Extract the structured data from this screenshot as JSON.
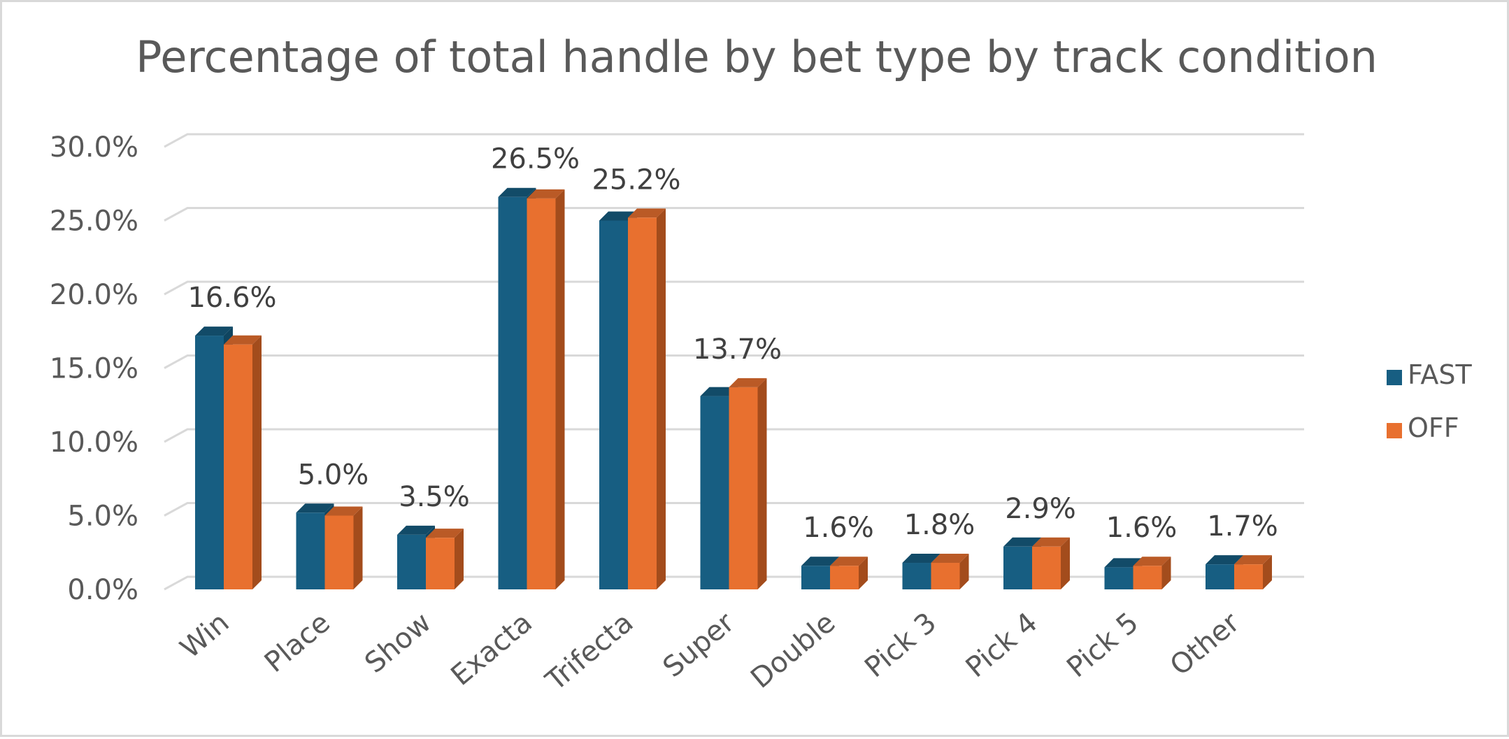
{
  "chart_data": {
    "type": "bar",
    "title": "Percentage of total handle by bet type by track condition",
    "xlabel": "",
    "ylabel": "",
    "categories": [
      "Win",
      "Place",
      "Show",
      "Exacta",
      "Trifecta",
      "Super",
      "Double",
      "Pick 3",
      "Pick 4",
      "Pick 5",
      "Other"
    ],
    "series": [
      {
        "name": "FAST",
        "color": "#175e82",
        "side_color": "#0f4560",
        "values": [
          17.2,
          5.2,
          3.7,
          26.6,
          25.0,
          13.1,
          1.6,
          1.8,
          2.9,
          1.5,
          1.7
        ]
      },
      {
        "name": "OFF",
        "color": "#e8702f",
        "side_color": "#a34c1c",
        "values": [
          16.6,
          5.0,
          3.5,
          26.5,
          25.2,
          13.7,
          1.6,
          1.8,
          2.9,
          1.6,
          1.7
        ]
      }
    ],
    "data_labels": [
      "16.6%",
      "5.0%",
      "3.5%",
      "26.5%",
      "25.2%",
      "13.7%",
      "1.6%",
      "1.8%",
      "2.9%",
      "1.6%",
      "1.7%"
    ],
    "y_ticks": [
      "0.0%",
      "5.0%",
      "10.0%",
      "15.0%",
      "20.0%",
      "25.0%",
      "30.0%"
    ],
    "ylim": [
      0,
      30
    ],
    "grid": true,
    "legend_position": "right"
  }
}
